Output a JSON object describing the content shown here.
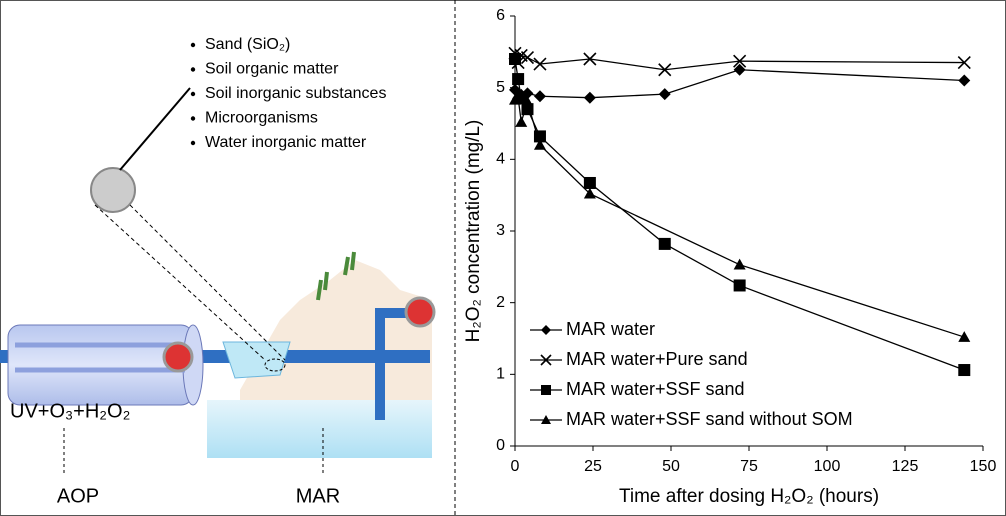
{
  "diagram": {
    "bullets": [
      "Sand (SiO₂)",
      "Soil organic matter",
      "Soil inorganic substances",
      "Microorganisms",
      "Water inorganic matter"
    ],
    "process_label": "UV+O₃+H₂O₂",
    "labels": [
      "AOP",
      "MAR"
    ]
  },
  "chart_data": {
    "type": "line",
    "x_label": "Time after dosing H₂O₂ (hours)",
    "y_label": "H₂O₂ concentration (mg/L)",
    "xlim": [
      0,
      150
    ],
    "xticks": [
      0,
      25,
      50,
      75,
      100,
      125,
      150
    ],
    "ylim": [
      0,
      6
    ],
    "yticks": [
      0,
      1,
      2,
      3,
      4,
      5,
      6
    ],
    "legend": "lower left",
    "series": [
      {
        "name": "MAR water",
        "marker": "diamond",
        "color": "#000000",
        "x": [
          0,
          1,
          2,
          4,
          8,
          24,
          48,
          72,
          144
        ],
        "values": [
          4.97,
          4.85,
          4.9,
          4.92,
          4.88,
          4.86,
          4.91,
          5.25,
          5.1
        ]
      },
      {
        "name": "MAR water+Pure sand",
        "marker": "cross",
        "color": "#000000",
        "x": [
          0,
          1,
          2,
          4,
          8,
          24,
          48,
          72,
          144
        ],
        "values": [
          5.48,
          5.35,
          5.45,
          5.42,
          5.33,
          5.4,
          5.25,
          5.37,
          5.35
        ]
      },
      {
        "name": "MAR water+SSF sand",
        "marker": "square",
        "color": "#000000",
        "x": [
          0,
          1,
          2,
          4,
          8,
          24,
          48,
          72,
          144
        ],
        "values": [
          5.4,
          5.12,
          4.85,
          4.7,
          4.32,
          3.67,
          2.82,
          2.24,
          1.06
        ]
      },
      {
        "name": "MAR water+SSF sand without SOM",
        "marker": "triangle",
        "color": "#000000",
        "x": [
          0,
          1,
          2,
          4,
          8,
          24,
          72,
          144
        ],
        "values": [
          4.83,
          4.86,
          4.52,
          4.8,
          4.2,
          3.52,
          2.53,
          1.52
        ]
      }
    ]
  }
}
